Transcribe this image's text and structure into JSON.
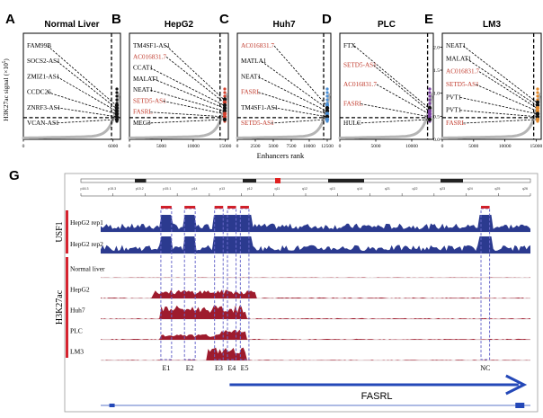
{
  "chart_data": [
    {
      "panel": "A",
      "type": "scatter",
      "title": "Normal Liver",
      "ylabel": "H3K27ac signal (×10^5)",
      "x_ticks": [
        0,
        6000
      ],
      "x_max": 6500,
      "ylim": [
        0,
        2.3
      ],
      "cutoff_x": 5900,
      "cutoff_y": 0.12,
      "labels": [
        "FAM99B",
        "SOCS2-AS1",
        "ZMIZ1-AS1",
        "CCDC26",
        "ZNRF3-AS1",
        "VCAN-AS1"
      ],
      "highlight": [
        false,
        false,
        false,
        false,
        false,
        false
      ],
      "point_color": "#111111"
    },
    {
      "panel": "B",
      "type": "scatter",
      "title": "HepG2",
      "x_ticks": [
        0,
        5000,
        10000,
        15000
      ],
      "x_max": 15500,
      "ylim": [
        0,
        2.3
      ],
      "cutoff_x": 14200,
      "cutoff_y": 0.12,
      "labels": [
        "TM4SF1-AS1",
        "AC016831.7",
        "CCAT1",
        "MALAT1",
        "NEAT1",
        "SETD5-AS1",
        "FASRL",
        "MEG3"
      ],
      "highlight": [
        false,
        true,
        false,
        false,
        false,
        true,
        true,
        false
      ],
      "point_color": "#d2412e"
    },
    {
      "panel": "C",
      "type": "scatter",
      "title": "Huh7",
      "x_ticks": [
        0,
        2500,
        5000,
        7500,
        10000,
        12500
      ],
      "x_max": 13000,
      "ylim": [
        0,
        2.3
      ],
      "cutoff_x": 12000,
      "cutoff_y": 0.12,
      "labels": [
        "AC016831.7",
        "MATLA1",
        "NEAT1",
        "FASRL",
        "TM4SF1-AS1",
        "SETD5-AS1"
      ],
      "highlight": [
        true,
        false,
        false,
        true,
        false,
        true
      ],
      "point_color": "#4a8fd6"
    },
    {
      "panel": "D",
      "type": "scatter",
      "title": "PLC",
      "x_ticks": [
        0,
        5000,
        10000
      ],
      "x_max": 13000,
      "ylim": [
        0,
        2.3
      ],
      "cutoff_x": 12200,
      "cutoff_y": 0.12,
      "labels": [
        "FTX",
        "SETD5-AS1",
        "AC016831.7",
        "FASRL",
        "HULC"
      ],
      "highlight": [
        false,
        true,
        true,
        true,
        false
      ],
      "point_color": "#7b3fa0"
    },
    {
      "panel": "E",
      "type": "scatter",
      "title": "LM3",
      "y_ticks": [
        0,
        0.5,
        1.0,
        1.5,
        2.0
      ],
      "x_ticks": [
        0,
        5000,
        10000,
        15000
      ],
      "x_max": 15800,
      "ylim": [
        0,
        2.3
      ],
      "cutoff_x": 14600,
      "cutoff_y": 0.12,
      "labels": [
        "NEAT1",
        "MALAT1",
        "AC016831.7",
        "SETD5-AS1",
        "PVT1",
        "PVT1",
        "FASRL"
      ],
      "highlight": [
        false,
        false,
        true,
        true,
        false,
        false,
        true
      ],
      "point_color": "#e58a2a"
    }
  ],
  "panel_letters": [
    "A",
    "B",
    "C",
    "D",
    "E",
    "G"
  ],
  "shared_xlabel": "Enhancers rank",
  "genome_browser": {
    "panel_letter": "G",
    "group_usf1": "USF1",
    "group_h3k27ac": "H3K27ac",
    "usf1_tracks": [
      "HepG2 rep1",
      "HepG2 rep2"
    ],
    "h3k27ac_tracks": [
      "Normal liver",
      "HepG2",
      "Huh7",
      "PLC",
      "LM3"
    ],
    "enhancers": [
      "E1",
      "E2",
      "E3",
      "E4",
      "E5",
      "NC"
    ],
    "gene_label": "FASRL",
    "ideogram_bands": [
      "p16.3",
      "p15.3",
      "p15.2",
      "p15.1",
      "p14",
      "p13",
      "p12",
      "q11",
      "q12",
      "q13",
      "q14",
      "q21",
      "q22",
      "q23",
      "q24",
      "q25",
      "q26"
    ],
    "colors": {
      "usf1": "#2b3a8f",
      "h3k27ac": "#9e1b2d",
      "enhancer_box": "#6a6acb",
      "gene_arrow": "#2448b8",
      "group_bar": "#d6232f"
    }
  }
}
